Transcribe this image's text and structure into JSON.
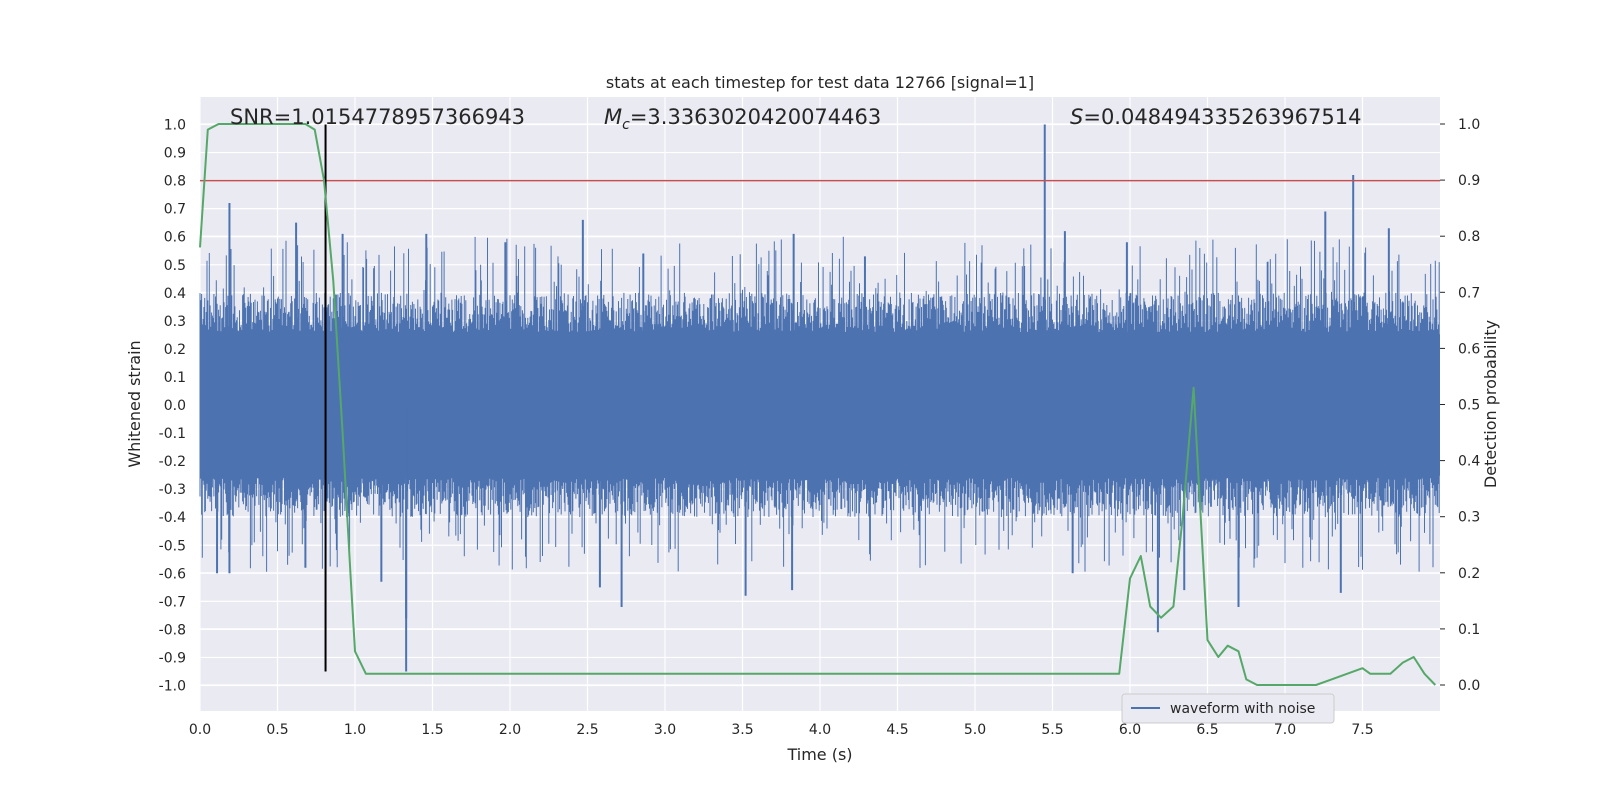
{
  "chart_data": {
    "type": "line",
    "title": "stats at each timestep for test data 12766 [signal=1]",
    "xlabel": "Time (s)",
    "ylabel": "Whitened strain",
    "y2label": "Detection probability",
    "xlim": [
      0,
      8.0
    ],
    "ylim": [
      -1.05,
      1.1
    ],
    "y2lim": [
      -0.045,
      1.04
    ],
    "xticks": [
      "0.0",
      "0.5",
      "1.0",
      "1.5",
      "2.0",
      "2.5",
      "3.0",
      "3.5",
      "4.0",
      "4.5",
      "5.0",
      "5.5",
      "6.0",
      "6.5",
      "7.0",
      "7.5"
    ],
    "yticks": [
      "-1.0",
      "-0.9",
      "-0.8",
      "-0.7",
      "-0.6",
      "-0.5",
      "-0.4",
      "-0.3",
      "-0.2",
      "-0.1",
      "0.0",
      "0.1",
      "0.2",
      "0.3",
      "0.4",
      "0.5",
      "0.6",
      "0.7",
      "0.8",
      "0.9",
      "1.0"
    ],
    "y2ticks": [
      "0.0",
      "0.1",
      "0.2",
      "0.3",
      "0.4",
      "0.5",
      "0.6",
      "0.7",
      "0.8",
      "0.9",
      "1.0"
    ],
    "grid": true,
    "legend_position": "lower-right",
    "annotations": {
      "snr": "SNR=1.0154778957366943",
      "mc_symbol": "M",
      "mc_sub": "c",
      "mc_value": "=3.3363020420074463",
      "s_symbol": "S",
      "s_value": "=0.048494335263967514"
    },
    "threshold_line": {
      "y": 0.8,
      "color": "#c44e52"
    },
    "marker_line": {
      "x": 0.81,
      "y_range": [
        -0.95,
        1.0
      ],
      "color": "#000000"
    },
    "series": [
      {
        "name": "waveform with noise",
        "type": "noise-waveform",
        "axis": "left",
        "color": "#4c72b0",
        "x_range": [
          0,
          8.0
        ],
        "envelope": [
          -0.35,
          0.35
        ],
        "spikes": [
          {
            "x": 0.19,
            "y": 0.72
          },
          {
            "x": 0.19,
            "y": -0.6
          },
          {
            "x": 0.11,
            "y": -0.6
          },
          {
            "x": 0.62,
            "y": 0.65
          },
          {
            "x": 0.68,
            "y": -0.58
          },
          {
            "x": 0.92,
            "y": 0.61
          },
          {
            "x": 1.17,
            "y": -0.63
          },
          {
            "x": 1.33,
            "y": -0.95
          },
          {
            "x": 1.33,
            "y": -0.76
          },
          {
            "x": 1.46,
            "y": 0.61
          },
          {
            "x": 1.97,
            "y": 0.58
          },
          {
            "x": 2.47,
            "y": 0.66
          },
          {
            "x": 2.58,
            "y": -0.65
          },
          {
            "x": 2.72,
            "y": -0.72
          },
          {
            "x": 2.86,
            "y": 0.54
          },
          {
            "x": 3.52,
            "y": -0.68
          },
          {
            "x": 3.82,
            "y": -0.66
          },
          {
            "x": 3.83,
            "y": 0.61
          },
          {
            "x": 4.29,
            "y": 0.53
          },
          {
            "x": 5.45,
            "y": 1.0
          },
          {
            "x": 5.63,
            "y": -0.6
          },
          {
            "x": 5.58,
            "y": 0.62
          },
          {
            "x": 5.98,
            "y": 0.58
          },
          {
            "x": 6.18,
            "y": -0.81
          },
          {
            "x": 6.35,
            "y": -0.66
          },
          {
            "x": 6.7,
            "y": -0.72
          },
          {
            "x": 7.26,
            "y": 0.69
          },
          {
            "x": 7.36,
            "y": -0.67
          },
          {
            "x": 7.44,
            "y": 0.82
          },
          {
            "x": 7.67,
            "y": 0.63
          }
        ]
      },
      {
        "name": "detection probability",
        "axis": "right",
        "color": "#55a868",
        "x": [
          0.0,
          0.05,
          0.12,
          0.2,
          0.3,
          0.4,
          0.5,
          0.6,
          0.68,
          0.74,
          0.8,
          0.86,
          0.92,
          0.97,
          1.0,
          1.07,
          1.14,
          1.22,
          1.3,
          1.38,
          1.45,
          1.52,
          1.62,
          1.72,
          1.82,
          1.92,
          2.0,
          2.05,
          2.13,
          2.2,
          2.3,
          2.5,
          2.7,
          3.0,
          3.5,
          3.9,
          4.1,
          4.5,
          4.7,
          4.9,
          5.2,
          5.6,
          5.7,
          5.78,
          5.85,
          5.93,
          6.0,
          6.07,
          6.13,
          6.2,
          6.28,
          6.34,
          6.41,
          6.5,
          6.57,
          6.63,
          6.7,
          6.75,
          6.82,
          6.9,
          7.0,
          7.1,
          7.2,
          7.3,
          7.4,
          7.5,
          7.55,
          7.62,
          7.68,
          7.76,
          7.83,
          7.9,
          7.97
        ],
        "y": [
          0.78,
          0.99,
          1.0,
          1.0,
          1.0,
          1.0,
          1.0,
          1.0,
          1.0,
          0.99,
          0.9,
          0.72,
          0.45,
          0.2,
          0.06,
          0.02,
          0.02,
          0.02,
          0.02,
          0.02,
          0.02,
          0.02,
          0.02,
          0.02,
          0.02,
          0.02,
          0.02,
          0.02,
          0.02,
          0.02,
          0.02,
          0.02,
          0.02,
          0.02,
          0.02,
          0.02,
          0.02,
          0.02,
          0.02,
          0.02,
          0.02,
          0.02,
          0.02,
          0.02,
          0.02,
          0.02,
          0.19,
          0.23,
          0.14,
          0.12,
          0.14,
          0.3,
          0.53,
          0.08,
          0.05,
          0.07,
          0.06,
          0.01,
          0.0,
          0.0,
          0.0,
          0.0,
          0.0,
          0.01,
          0.02,
          0.03,
          0.02,
          0.02,
          0.02,
          0.04,
          0.05,
          0.02,
          0.0
        ]
      }
    ]
  }
}
